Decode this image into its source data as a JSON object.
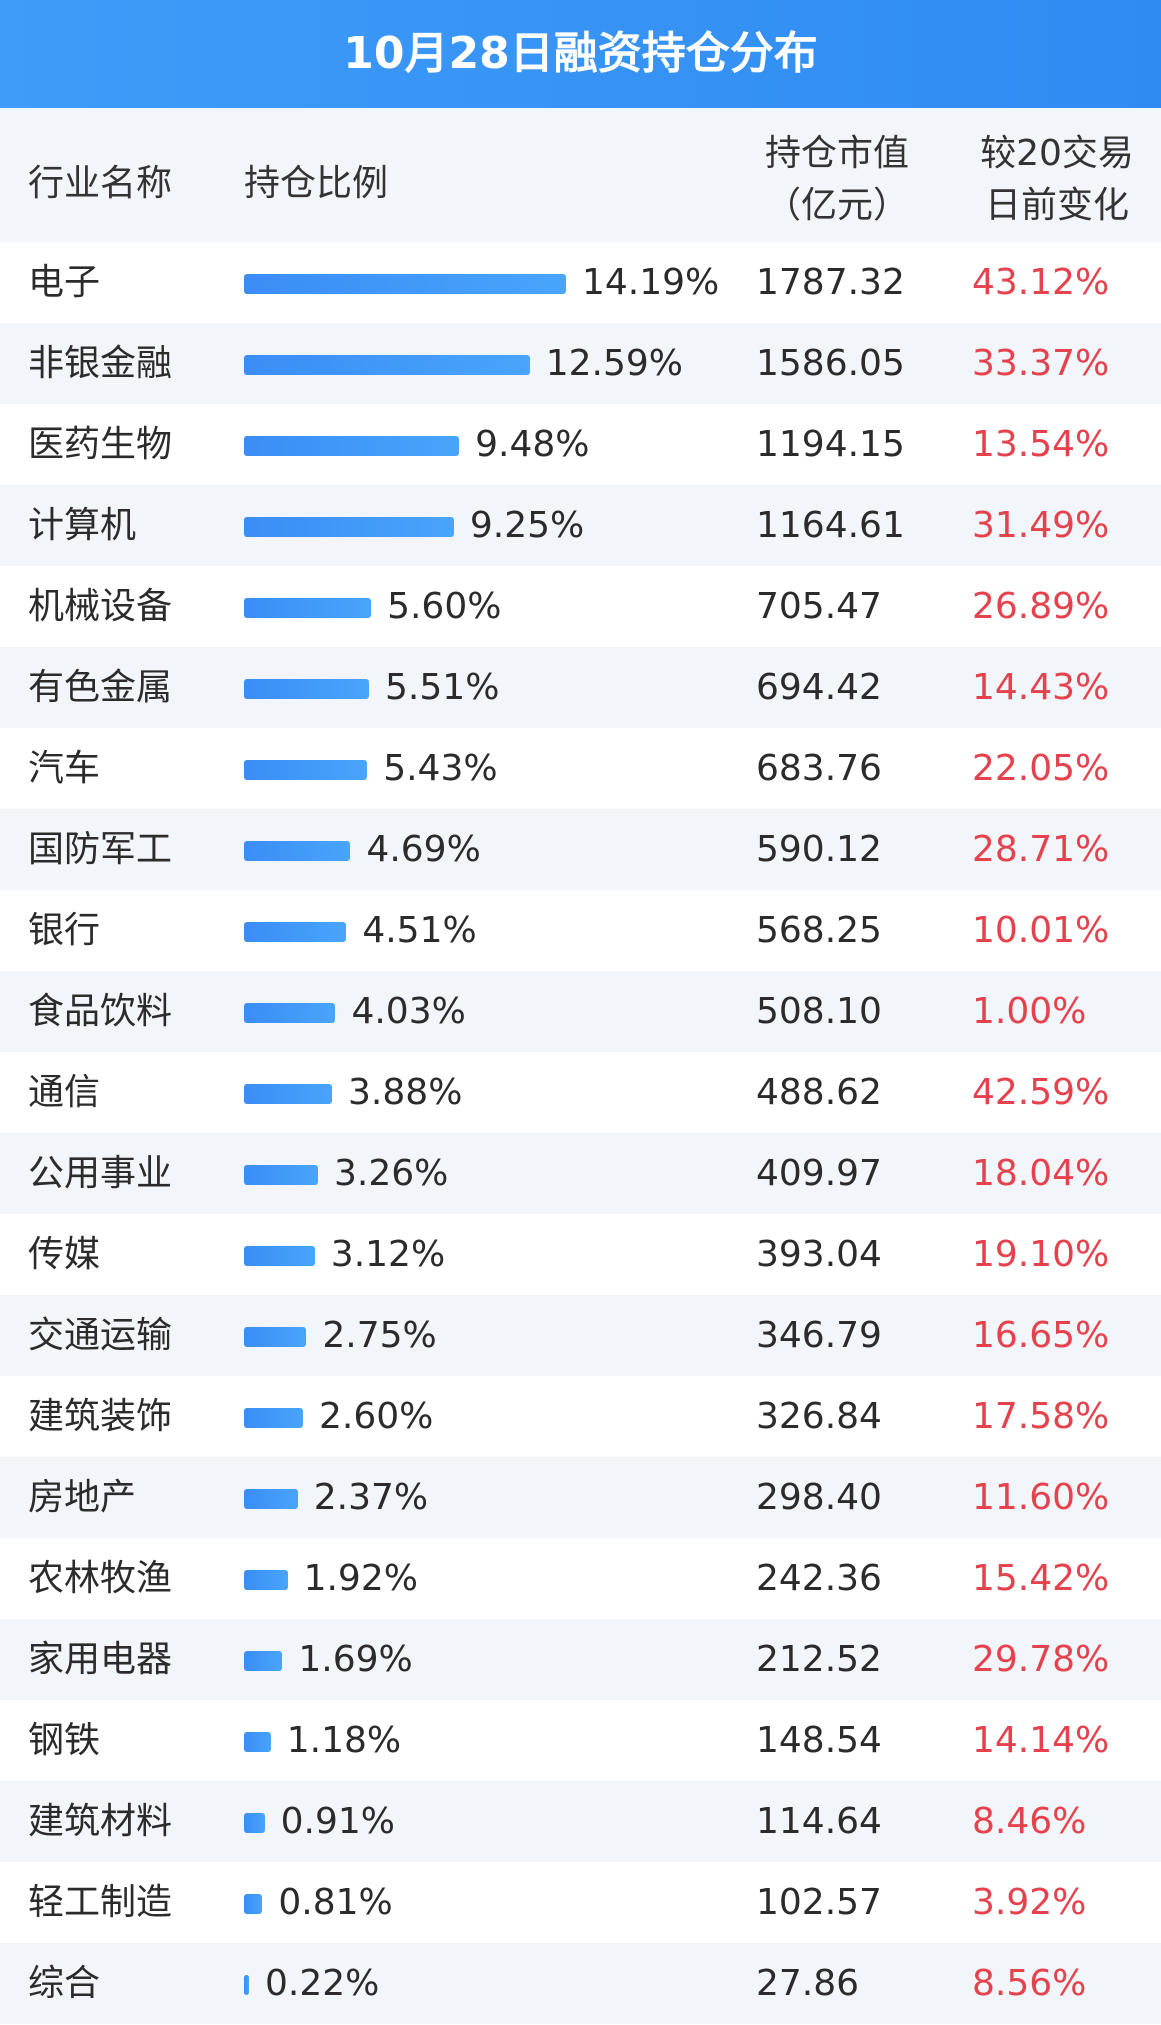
{
  "chart_data": {
    "type": "table",
    "title": "10月28日融资持仓分布",
    "columns": {
      "industry": "行业名称",
      "ratio": "持仓比例",
      "value_line1": "持仓市值",
      "value_line2": "（亿元）",
      "change_line1": "较20交易",
      "change_line2": "日前变化"
    },
    "rows": [
      {
        "name": "电子",
        "ratio": 14.19,
        "ratio_label": "14.19%",
        "value": "1787.32",
        "change": "43.12%"
      },
      {
        "name": "非银金融",
        "ratio": 12.59,
        "ratio_label": "12.59%",
        "value": "1586.05",
        "change": "33.37%"
      },
      {
        "name": "医药生物",
        "ratio": 9.48,
        "ratio_label": "9.48%",
        "value": "1194.15",
        "change": "13.54%"
      },
      {
        "name": "计算机",
        "ratio": 9.25,
        "ratio_label": "9.25%",
        "value": "1164.61",
        "change": "31.49%"
      },
      {
        "name": "机械设备",
        "ratio": 5.6,
        "ratio_label": "5.60%",
        "value": "705.47",
        "change": "26.89%"
      },
      {
        "name": "有色金属",
        "ratio": 5.51,
        "ratio_label": "5.51%",
        "value": "694.42",
        "change": "14.43%"
      },
      {
        "name": "汽车",
        "ratio": 5.43,
        "ratio_label": "5.43%",
        "value": "683.76",
        "change": "22.05%"
      },
      {
        "name": "国防军工",
        "ratio": 4.69,
        "ratio_label": "4.69%",
        "value": "590.12",
        "change": "28.71%"
      },
      {
        "name": "银行",
        "ratio": 4.51,
        "ratio_label": "4.51%",
        "value": "568.25",
        "change": "10.01%"
      },
      {
        "name": "食品饮料",
        "ratio": 4.03,
        "ratio_label": "4.03%",
        "value": "508.10",
        "change": "1.00%"
      },
      {
        "name": "通信",
        "ratio": 3.88,
        "ratio_label": "3.88%",
        "value": "488.62",
        "change": "42.59%"
      },
      {
        "name": "公用事业",
        "ratio": 3.26,
        "ratio_label": "3.26%",
        "value": "409.97",
        "change": "18.04%"
      },
      {
        "name": "传媒",
        "ratio": 3.12,
        "ratio_label": "3.12%",
        "value": "393.04",
        "change": "19.10%"
      },
      {
        "name": "交通运输",
        "ratio": 2.75,
        "ratio_label": "2.75%",
        "value": "346.79",
        "change": "16.65%"
      },
      {
        "name": "建筑装饰",
        "ratio": 2.6,
        "ratio_label": "2.60%",
        "value": "326.84",
        "change": "17.58%"
      },
      {
        "name": "房地产",
        "ratio": 2.37,
        "ratio_label": "2.37%",
        "value": "298.40",
        "change": "11.60%"
      },
      {
        "name": "农林牧渔",
        "ratio": 1.92,
        "ratio_label": "1.92%",
        "value": "242.36",
        "change": "15.42%"
      },
      {
        "name": "家用电器",
        "ratio": 1.69,
        "ratio_label": "1.69%",
        "value": "212.52",
        "change": "29.78%"
      },
      {
        "name": "钢铁",
        "ratio": 1.18,
        "ratio_label": "1.18%",
        "value": "148.54",
        "change": "14.14%"
      },
      {
        "name": "建筑材料",
        "ratio": 0.91,
        "ratio_label": "0.91%",
        "value": "114.64",
        "change": "8.46%"
      },
      {
        "name": "轻工制造",
        "ratio": 0.81,
        "ratio_label": "0.81%",
        "value": "102.57",
        "change": "3.92%"
      },
      {
        "name": "综合",
        "ratio": 0.22,
        "ratio_label": "0.22%",
        "value": "27.86",
        "change": "8.56%"
      }
    ]
  },
  "colors": {
    "title_bar": "#2f8bf2",
    "bar": "#3a8df5",
    "change_text": "#e5424d",
    "stripe": "#f2f5f9"
  }
}
